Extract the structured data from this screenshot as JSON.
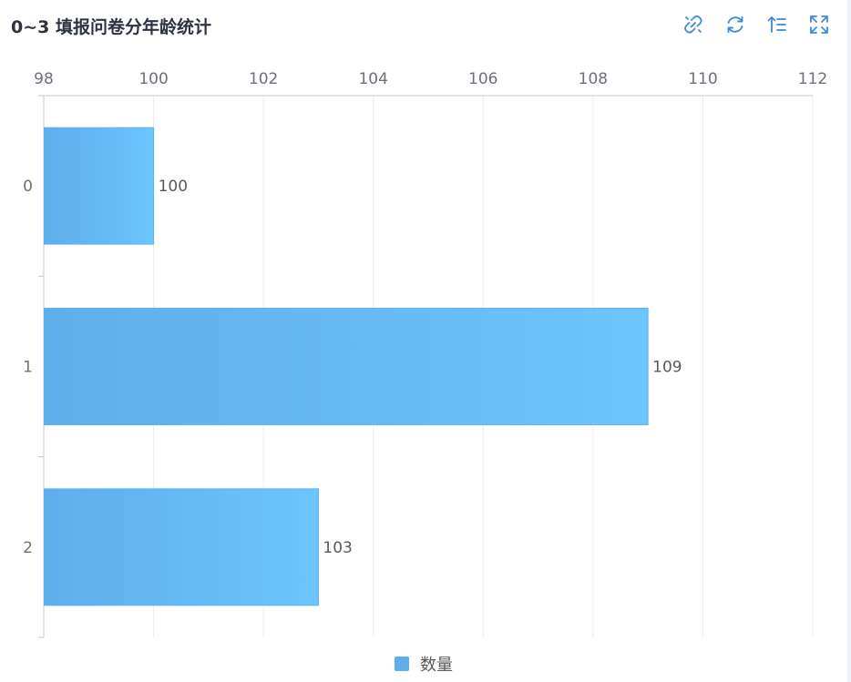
{
  "header": {
    "title": "0~3 填报问卷分年龄统计"
  },
  "toolbar": {
    "buttons": [
      {
        "name": "data-view-icon"
      },
      {
        "name": "refresh-icon"
      },
      {
        "name": "sort-icon"
      },
      {
        "name": "fullscreen-icon"
      }
    ]
  },
  "colors": {
    "bar_start": "#5faeec",
    "bar_end": "#6cc5fd",
    "bar_stroke": "#5ab0ee",
    "grid": "#ececec",
    "axis": "#c8c8c8",
    "tool_icon": "#3d8bd8"
  },
  "chart_data": {
    "type": "bar",
    "orientation": "horizontal",
    "title": "0~3 填报问卷分年龄统计",
    "categories": [
      "0",
      "1",
      "2"
    ],
    "series": [
      {
        "name": "数量",
        "values": [
          100,
          109,
          103
        ]
      }
    ],
    "xlim": [
      98,
      112
    ],
    "x_ticks": [
      98,
      100,
      102,
      104,
      106,
      108,
      110,
      112
    ],
    "x_axis_position": "top",
    "grid": true,
    "data_labels": true,
    "legend": "bottom-center"
  }
}
